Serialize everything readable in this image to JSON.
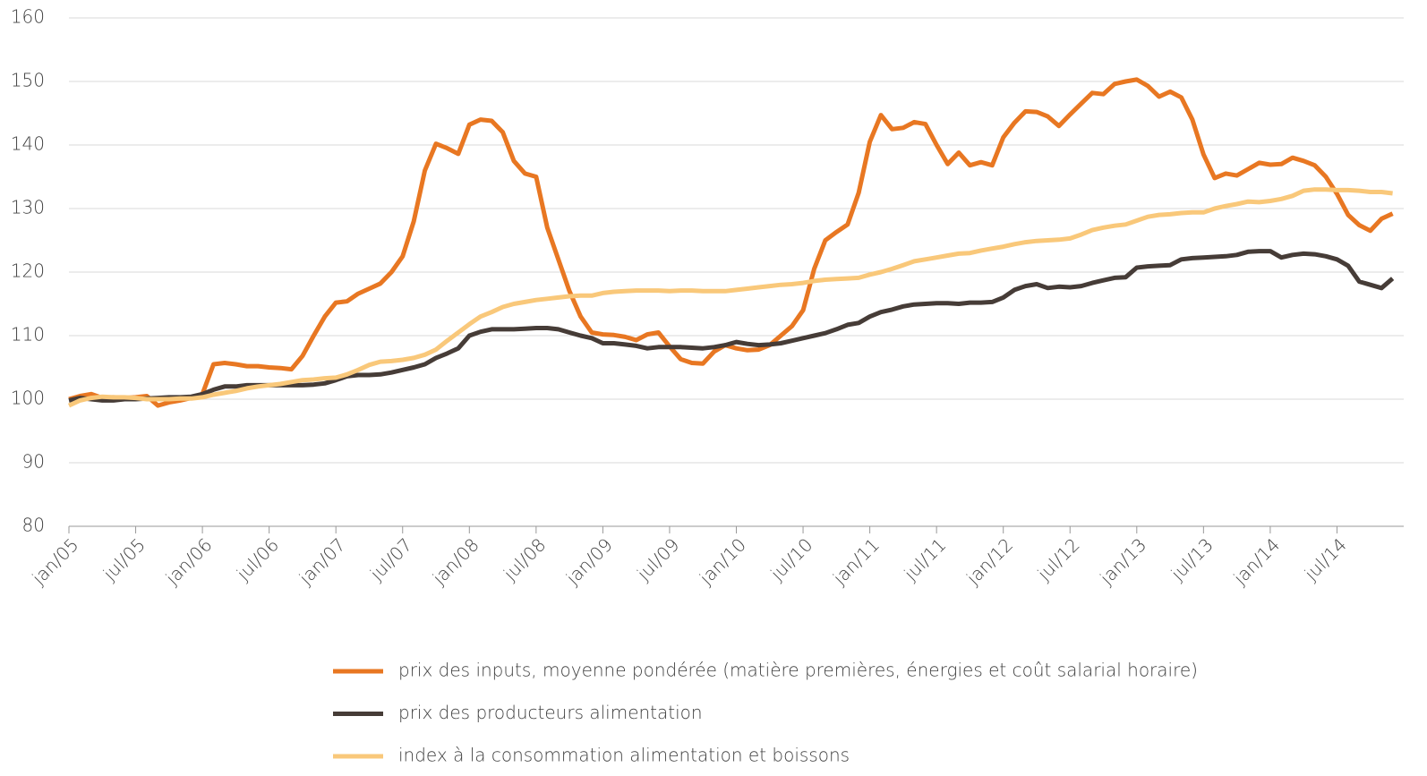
{
  "chart_data": {
    "type": "line",
    "categories": [
      "jan/05",
      null,
      null,
      null,
      null,
      null,
      "jul/05",
      null,
      null,
      null,
      null,
      null,
      "jan/06",
      null,
      null,
      null,
      null,
      null,
      "jul/06",
      null,
      null,
      null,
      null,
      null,
      "jan/07",
      null,
      null,
      null,
      null,
      null,
      "jul/07",
      null,
      null,
      null,
      null,
      null,
      "jan/08",
      null,
      null,
      null,
      null,
      null,
      "jul/08",
      null,
      null,
      null,
      null,
      null,
      "jan/09",
      null,
      null,
      null,
      null,
      null,
      "jul/09",
      null,
      null,
      null,
      null,
      null,
      "jan/10",
      null,
      null,
      null,
      null,
      null,
      "jul/10",
      null,
      null,
      null,
      null,
      null,
      "jan/11",
      null,
      null,
      null,
      null,
      null,
      "jul/11",
      null,
      null,
      null,
      null,
      null,
      "jan/12",
      null,
      null,
      null,
      null,
      null,
      "jul/12",
      null,
      null,
      null,
      null,
      null,
      "jan/13",
      null,
      null,
      null,
      null,
      null,
      "jul/13",
      null,
      null,
      null,
      null,
      null,
      "jan/14",
      null,
      null,
      null,
      null,
      null,
      "jul/14",
      null,
      null,
      null,
      null,
      null
    ],
    "series": [
      {
        "name": "prix des inputs, moyenne pondérée (matière premières, énergies et coût salarial horaire)",
        "color": "#e87722",
        "values": [
          100,
          100.5,
          100.8,
          100.2,
          100.3,
          100.2,
          100.3,
          100.5,
          99,
          99.5,
          99.8,
          100.2,
          100.8,
          105.5,
          105.7,
          105.5,
          105.2,
          105.2,
          105,
          104.9,
          104.7,
          106.8,
          110,
          113,
          115.2,
          115.4,
          116.6,
          117.4,
          118.2,
          120,
          122.5,
          128,
          136,
          140.2,
          139.5,
          138.6,
          143.2,
          144,
          143.8,
          142,
          137.5,
          135.5,
          135,
          127,
          122,
          117,
          113,
          110.5,
          110.2,
          110.1,
          109.8,
          109.3,
          110.2,
          110.5,
          108.3,
          106.3,
          105.7,
          105.6,
          107.5,
          108.5,
          108,
          107.7,
          107.8,
          108.5,
          110,
          111.5,
          114,
          120.5,
          125,
          126.3,
          127.5,
          132.5,
          140.5,
          144.7,
          142.5,
          142.7,
          143.6,
          143.3,
          140,
          137,
          138.8,
          136.8,
          137.3,
          136.8,
          141.2,
          143.5,
          145.3,
          145.2,
          144.5,
          143,
          144.8,
          146.5,
          148.2,
          148,
          149.6,
          150,
          150.3,
          149.3,
          147.6,
          148.4,
          147.5,
          144,
          138.5,
          134.8,
          135.5,
          135.2,
          136.2,
          137.2,
          136.9,
          137,
          138,
          137.5,
          136.8,
          135,
          132.3,
          129,
          127.4,
          126.5,
          128.4,
          129.2
        ]
      },
      {
        "name": "prix des producteurs alimentation",
        "color": "#463c37",
        "values": [
          99.8,
          100.2,
          100,
          99.8,
          99.8,
          100,
          100,
          100.1,
          100.2,
          100.3,
          100.3,
          100.4,
          100.8,
          101.5,
          102,
          102,
          102.2,
          102.2,
          102.2,
          102.2,
          102.2,
          102.2,
          102.3,
          102.5,
          103,
          103.6,
          103.8,
          103.8,
          103.9,
          104.2,
          104.6,
          105,
          105.5,
          106.5,
          107.2,
          108,
          110,
          110.6,
          111,
          111,
          111,
          111.1,
          111.2,
          111.2,
          111,
          110.5,
          110,
          109.6,
          108.8,
          108.8,
          108.6,
          108.4,
          108,
          108.2,
          108.2,
          108.2,
          108.1,
          108,
          108.2,
          108.5,
          109,
          108.7,
          108.5,
          108.6,
          108.8,
          109.2,
          109.6,
          110,
          110.4,
          111,
          111.7,
          112,
          113,
          113.7,
          114.1,
          114.6,
          114.9,
          115,
          115.1,
          115.1,
          115,
          115.2,
          115.2,
          115.3,
          116,
          117.2,
          117.8,
          118.1,
          117.5,
          117.7,
          117.6,
          117.8,
          118.3,
          118.7,
          119.1,
          119.2,
          120.7,
          120.9,
          121,
          121.1,
          122,
          122.2,
          122.3,
          122.4,
          122.5,
          122.7,
          123.2,
          123.3,
          123.3,
          122.3,
          122.7,
          122.9,
          122.8,
          122.5,
          122,
          121,
          118.5,
          118,
          117.5,
          119
        ]
      },
      {
        "name": "index à la consommation alimentation et boissons",
        "color": "#f9c87a",
        "values": [
          99,
          99.8,
          100.2,
          100.4,
          100.3,
          100.3,
          100.2,
          100,
          100,
          100,
          100.1,
          100.1,
          100.3,
          100.7,
          101,
          101.3,
          101.7,
          102,
          102.2,
          102.4,
          102.7,
          103,
          103.1,
          103.3,
          103.4,
          103.9,
          104.6,
          105.4,
          105.9,
          106,
          106.2,
          106.5,
          107,
          107.8,
          109.2,
          110.5,
          111.8,
          113,
          113.7,
          114.5,
          115,
          115.3,
          115.6,
          115.8,
          116,
          116.2,
          116.3,
          116.3,
          116.7,
          116.9,
          117,
          117.1,
          117.1,
          117.1,
          117,
          117.1,
          117.1,
          117,
          117,
          117,
          117.2,
          117.4,
          117.6,
          117.8,
          118,
          118.1,
          118.3,
          118.6,
          118.8,
          118.9,
          119,
          119.1,
          119.6,
          120,
          120.5,
          121.1,
          121.7,
          122,
          122.3,
          122.6,
          122.9,
          123,
          123.4,
          123.7,
          124,
          124.4,
          124.7,
          124.9,
          125,
          125.1,
          125.3,
          125.9,
          126.6,
          127,
          127.3,
          127.5,
          128.1,
          128.7,
          129,
          129.1,
          129.3,
          129.4,
          129.4,
          130,
          130.4,
          130.7,
          131.1,
          131,
          131.2,
          131.5,
          132,
          132.8,
          133,
          133,
          132.9,
          132.9,
          132.8,
          132.6,
          132.6,
          132.4
        ]
      }
    ],
    "ylim": [
      80,
      160
    ],
    "yticks": [
      80,
      90,
      100,
      110,
      120,
      130,
      140,
      150,
      160
    ],
    "grid": true,
    "legend": "bottom"
  }
}
